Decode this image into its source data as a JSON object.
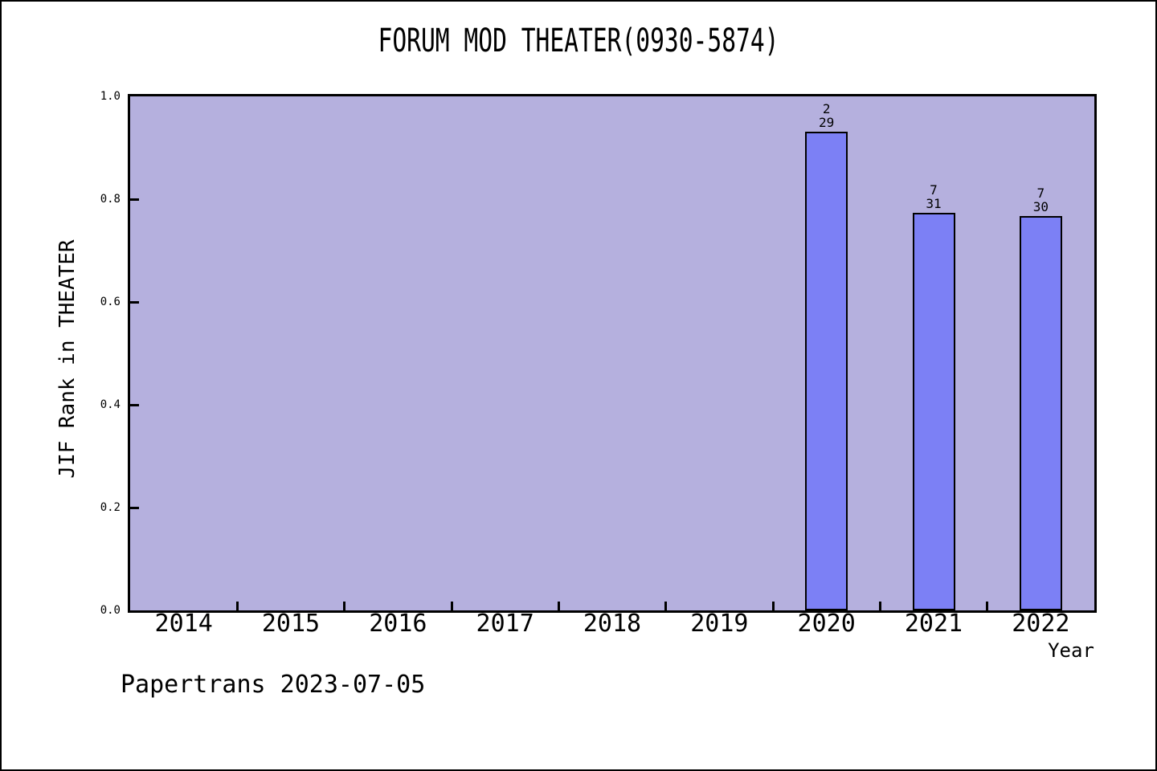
{
  "chart_data": {
    "type": "bar",
    "title": "FORUM MOD THEATER(0930-5874)",
    "xlabel": "Year",
    "ylabel": "JIF Rank in THEATER",
    "categories": [
      "2014",
      "2015",
      "2016",
      "2017",
      "2018",
      "2019",
      "2020",
      "2021",
      "2022"
    ],
    "values": [
      null,
      null,
      null,
      null,
      null,
      null,
      0.931,
      0.774,
      0.767
    ],
    "bar_labels": [
      null,
      null,
      null,
      null,
      null,
      null,
      [
        "2",
        "29"
      ],
      [
        "7",
        "31"
      ],
      [
        "7",
        "30"
      ]
    ],
    "ylim": [
      0.0,
      1.0
    ],
    "yticks": [
      "0.0",
      "0.2",
      "0.4",
      "0.6",
      "0.8",
      "1.0"
    ],
    "grid": false,
    "legend": null,
    "colors": {
      "plot_bg": "#b5b0de",
      "bar_fill": "#7c80f5",
      "bar_edge": "#000000",
      "frame": "#000000"
    }
  },
  "footer": {
    "text": "Papertrans 2023-07-05"
  }
}
